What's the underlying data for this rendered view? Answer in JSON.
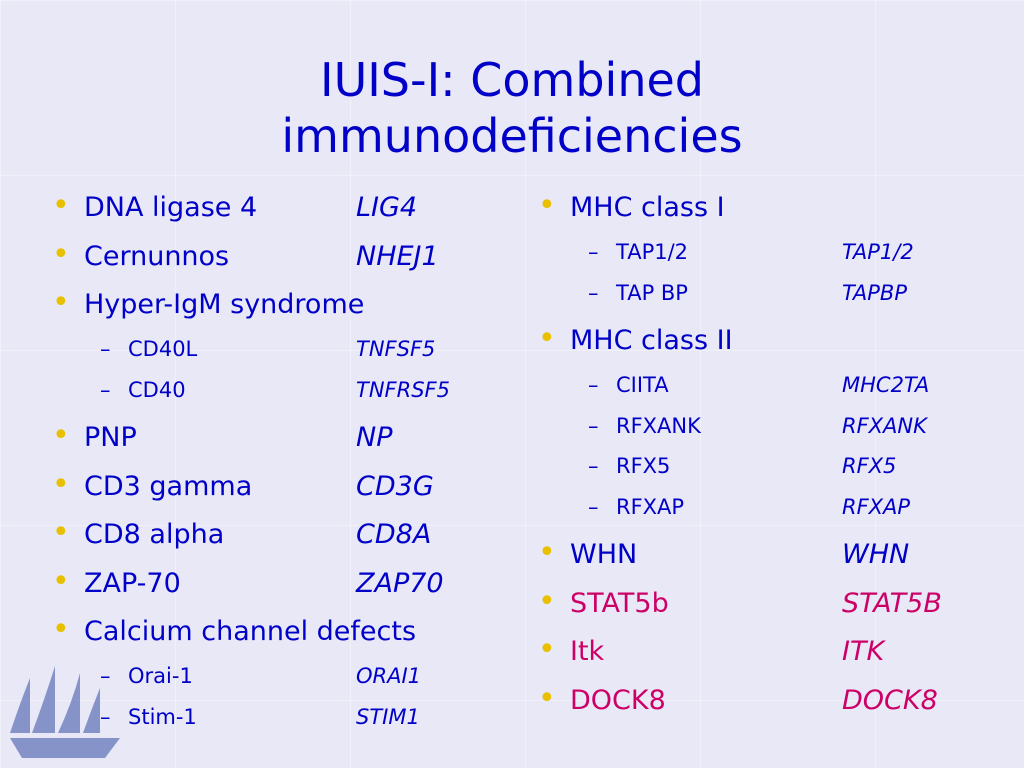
{
  "title_lines": [
    "IUIS-I: Combined",
    "immunodeficiencies"
  ],
  "columns": [
    [
      {
        "level": 1,
        "name": "DNA ligase 4",
        "gene": "LIG4",
        "color": "#0000c8"
      },
      {
        "level": 1,
        "name": "Cernunnos",
        "gene": "NHEJ1",
        "color": "#0000c8"
      },
      {
        "level": 1,
        "name": "Hyper-IgM syndrome",
        "color": "#0000c8"
      },
      {
        "level": 2,
        "name": "CD40L",
        "gene": "TNFSF5",
        "color": "#0000c8"
      },
      {
        "level": 2,
        "name": "CD40",
        "gene": "TNFRSF5",
        "color": "#0000c8"
      },
      {
        "level": 1,
        "name": "PNP",
        "gene": "NP",
        "color": "#0000c8"
      },
      {
        "level": 1,
        "name": "CD3 gamma",
        "gene": "CD3G",
        "color": "#0000c8"
      },
      {
        "level": 1,
        "name": "CD8 alpha",
        "gene": "CD8A",
        "color": "#0000c8"
      },
      {
        "level": 1,
        "name": "ZAP-70",
        "gene": "ZAP70",
        "color": "#0000c8"
      },
      {
        "level": 1,
        "name": "Calcium channel defects",
        "color": "#0000c8"
      },
      {
        "level": 2,
        "name": "Orai-1",
        "gene": "ORAI1",
        "color": "#0000c8"
      },
      {
        "level": 2,
        "name": "Stim-1",
        "gene": "STIM1",
        "color": "#0000c8"
      }
    ],
    [
      {
        "level": 1,
        "name": "MHC class I",
        "color": "#0000c8"
      },
      {
        "level": 2,
        "name": "TAP1/2",
        "gene": "TAP1/2",
        "color": "#0000c8"
      },
      {
        "level": 2,
        "name": "TAP BP",
        "gene": "TAPBP",
        "color": "#0000c8"
      },
      {
        "level": 1,
        "name": "MHC class II",
        "color": "#0000c8"
      },
      {
        "level": 2,
        "name": "CIITA",
        "gene": "MHC2TA",
        "color": "#0000c8"
      },
      {
        "level": 2,
        "name": "RFXANK",
        "gene": "RFXANK",
        "color": "#0000c8"
      },
      {
        "level": 2,
        "name": "RFX5",
        "gene": "RFX5",
        "color": "#0000c8"
      },
      {
        "level": 2,
        "name": "RFXAP",
        "gene": "RFXAP",
        "color": "#0000c8"
      },
      {
        "level": 1,
        "name": "WHN",
        "gene": "WHN",
        "color": "#0000c8"
      },
      {
        "level": 1,
        "name": "STAT5b",
        "gene": "STAT5B",
        "color": "#cc0066"
      },
      {
        "level": 1,
        "name": "Itk",
        "gene": "ITK",
        "color": "#cc0066"
      },
      {
        "level": 1,
        "name": "DOCK8",
        "gene": "DOCK8",
        "color": "#cc0066"
      }
    ]
  ]
}
